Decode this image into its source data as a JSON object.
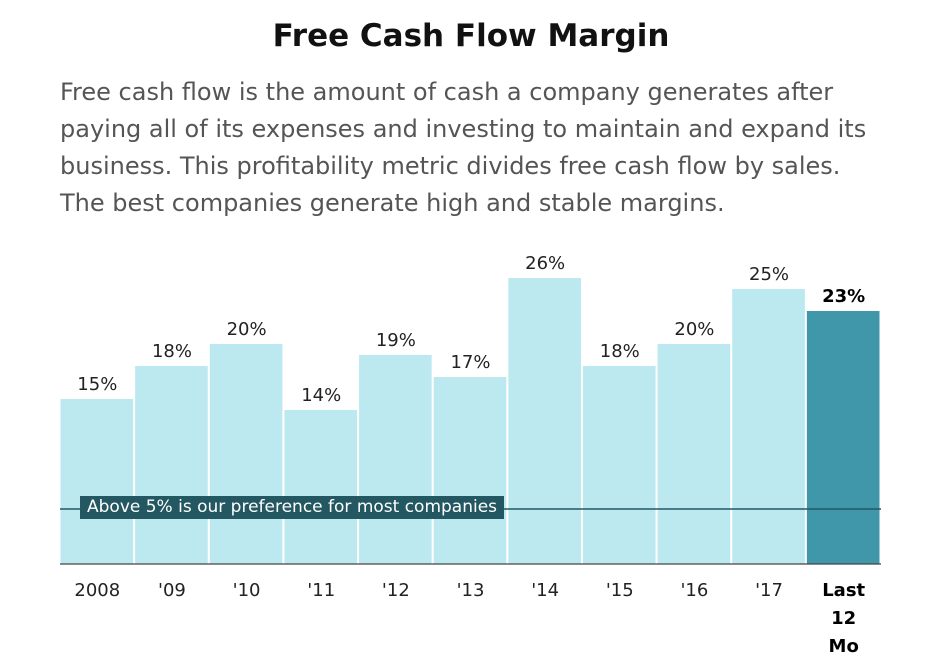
{
  "title": "Free Cash Flow Margin",
  "subtitle": "Free cash flow is the amount of cash a company generates after paying all of its expenses and investing to maintain and expand its business. This profitability metric divides free cash flow by sales. The best companies generate high and stable margins.",
  "chart_data": {
    "type": "bar",
    "categories": [
      "2008",
      "'09",
      "'10",
      "'11",
      "'12",
      "'13",
      "'14",
      "'15",
      "'16",
      "'17",
      "Last\n12\nMo"
    ],
    "values": [
      15,
      18,
      20,
      14,
      19,
      17,
      26,
      18,
      20,
      25,
      23
    ],
    "data_labels": [
      "15%",
      "18%",
      "20%",
      "14%",
      "19%",
      "17%",
      "26%",
      "18%",
      "20%",
      "25%",
      "23%"
    ],
    "highlight_index": 10,
    "ylim": [
      0,
      28
    ],
    "reference_line": {
      "value": 5,
      "label": "Above 5% is our preference for most companies"
    },
    "colors": {
      "bar": "#bce9f0",
      "highlight": "#4097a9",
      "reference": "#235862"
    },
    "grid": false
  }
}
